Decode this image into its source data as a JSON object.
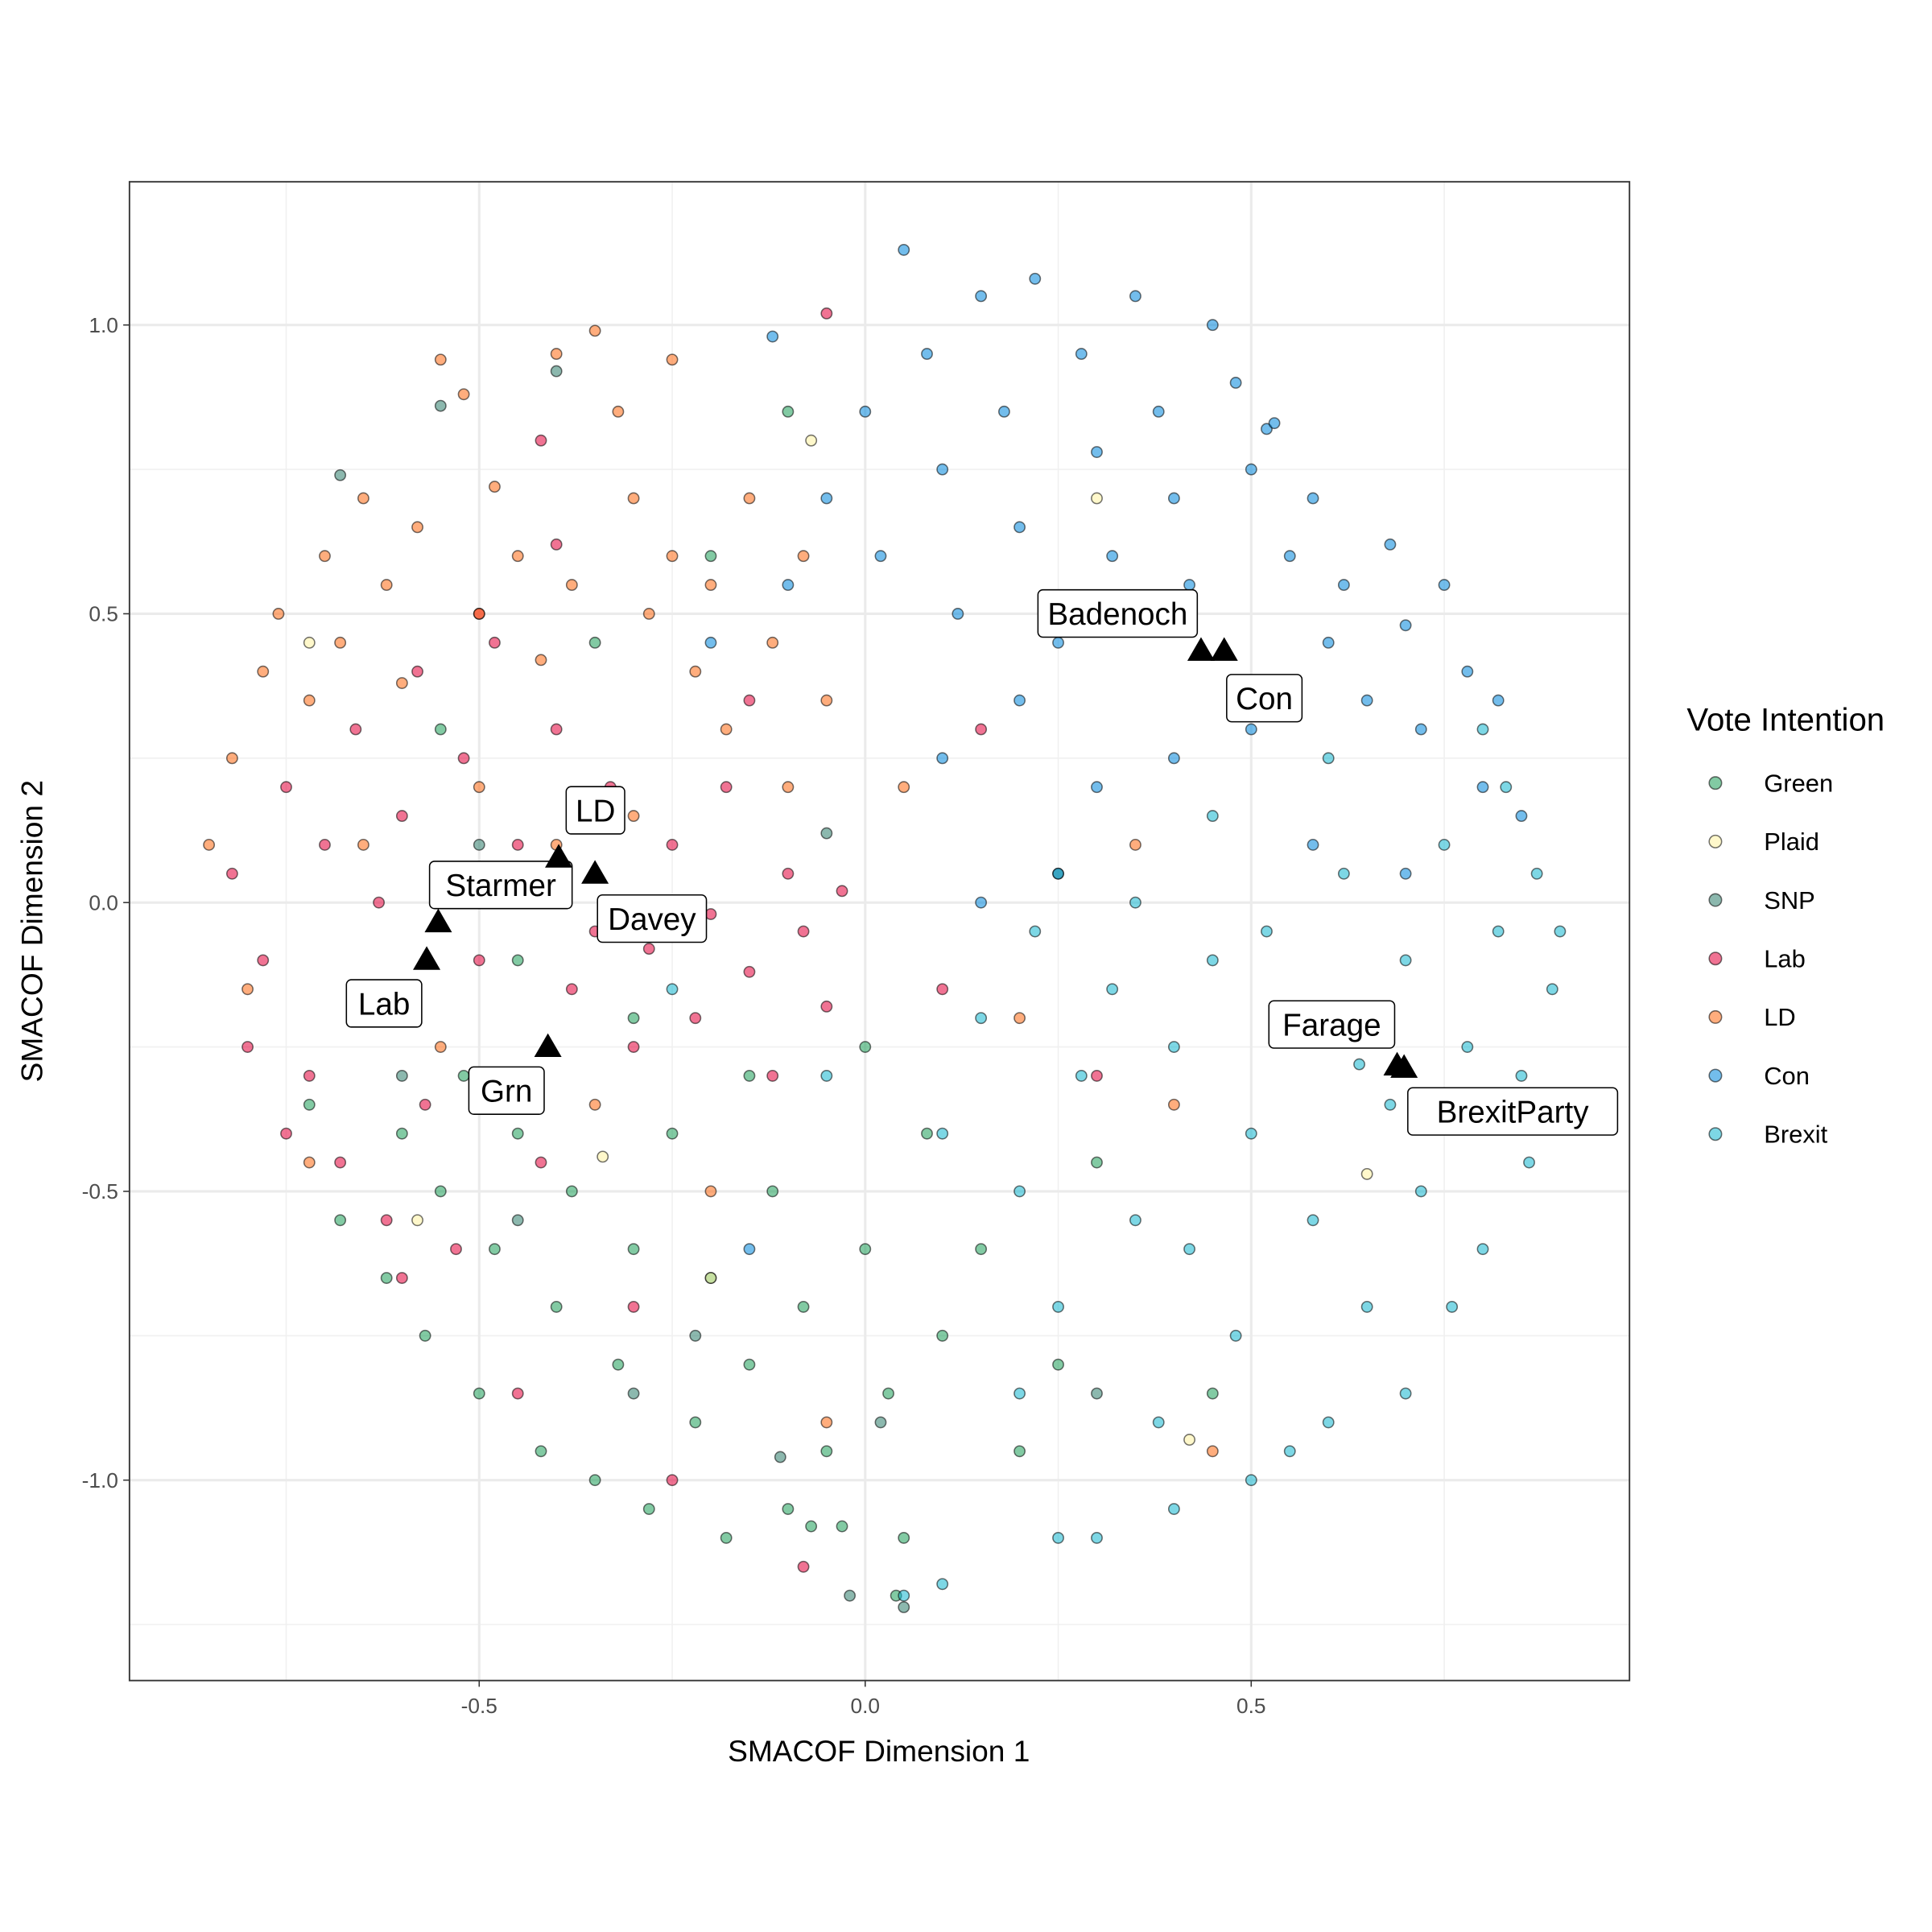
{
  "chart_data": {
    "type": "scatter",
    "title": "",
    "xlabel": "SMACOF Dimension 1",
    "ylabel": "SMACOF Dimension 2",
    "xlim": [
      -0.953,
      0.99
    ],
    "ylim": [
      -1.347,
      1.248
    ],
    "x_ticks": [
      -0.5,
      0.0,
      0.5
    ],
    "x_tick_labels": [
      "-0.5",
      "0.0",
      "0.5"
    ],
    "y_ticks": [
      -1.0,
      -0.5,
      0.0,
      0.5,
      1.0
    ],
    "y_tick_labels": [
      "-1.0",
      "-0.5",
      "0.0",
      "0.5",
      "1.0"
    ],
    "grid": true,
    "legend": {
      "title": "Vote Intention",
      "position": "right"
    },
    "series": [
      {
        "name": "Green",
        "color": "#1B9E57",
        "points": [
          [
            -0.72,
            -0.35
          ],
          [
            -0.68,
            -0.55
          ],
          [
            -0.65,
            -0.2
          ],
          [
            -0.62,
            -0.65
          ],
          [
            -0.6,
            -0.4
          ],
          [
            -0.57,
            -0.75
          ],
          [
            -0.55,
            -0.5
          ],
          [
            -0.52,
            -0.3
          ],
          [
            -0.5,
            -0.85
          ],
          [
            -0.48,
            -0.6
          ],
          [
            -0.45,
            -0.4
          ],
          [
            -0.42,
            -0.95
          ],
          [
            -0.4,
            -0.7
          ],
          [
            -0.38,
            -0.5
          ],
          [
            -0.35,
            -1.0
          ],
          [
            -0.32,
            -0.8
          ],
          [
            -0.3,
            -0.6
          ],
          [
            -0.28,
            -1.05
          ],
          [
            -0.25,
            -0.4
          ],
          [
            -0.22,
            -0.9
          ],
          [
            -0.2,
            -0.65
          ],
          [
            -0.18,
            -1.1
          ],
          [
            -0.15,
            -0.8
          ],
          [
            -0.12,
            -0.5
          ],
          [
            -0.1,
            -1.05
          ],
          [
            -0.08,
            -0.7
          ],
          [
            -0.05,
            -0.95
          ],
          [
            -0.03,
            -1.08
          ],
          [
            0.0,
            -0.6
          ],
          [
            0.03,
            -0.85
          ],
          [
            0.05,
            -1.1
          ],
          [
            0.08,
            -0.4
          ],
          [
            0.1,
            -0.75
          ],
          [
            0.15,
            -0.6
          ],
          [
            0.2,
            -0.95
          ],
          [
            0.25,
            -0.8
          ],
          [
            -0.45,
            -0.1
          ],
          [
            -0.3,
            -0.2
          ],
          [
            -0.15,
            -0.3
          ],
          [
            -0.55,
            0.3
          ],
          [
            -0.35,
            0.45
          ],
          [
            -0.2,
            0.6
          ],
          [
            -0.1,
            0.85
          ],
          [
            0.25,
            0.05
          ],
          [
            0.3,
            -0.45
          ],
          [
            0.0,
            -0.25
          ],
          [
            0.04,
            -1.2
          ],
          [
            -0.07,
            -1.08
          ],
          [
            0.45,
            -0.85
          ]
        ]
      },
      {
        "name": "Plaid",
        "color": "#FFF3A0",
        "points": [
          [
            -0.72,
            0.45
          ],
          [
            -0.34,
            -0.44
          ],
          [
            -0.07,
            0.8
          ],
          [
            -0.2,
            -0.65
          ],
          [
            0.42,
            -0.93
          ],
          [
            0.65,
            -0.47
          ],
          [
            -0.58,
            -0.55
          ],
          [
            0.3,
            0.7
          ]
        ]
      },
      {
        "name": "SNP",
        "color": "#2E7D6B",
        "points": [
          [
            -0.68,
            0.74
          ],
          [
            -0.55,
            0.86
          ],
          [
            -0.4,
            0.92
          ],
          [
            -0.6,
            -0.3
          ],
          [
            -0.45,
            -0.55
          ],
          [
            -0.3,
            -0.85
          ],
          [
            -0.11,
            -0.96
          ],
          [
            -0.02,
            -1.2
          ],
          [
            0.05,
            -1.22
          ],
          [
            -0.22,
            -0.75
          ],
          [
            0.02,
            -0.9
          ],
          [
            -0.5,
            0.1
          ],
          [
            -0.05,
            0.12
          ],
          [
            0.3,
            -0.85
          ]
        ]
      },
      {
        "name": "Lab",
        "color": "#E4003B",
        "points": [
          [
            -0.82,
            0.05
          ],
          [
            -0.78,
            -0.1
          ],
          [
            -0.75,
            0.2
          ],
          [
            -0.72,
            -0.3
          ],
          [
            -0.7,
            0.1
          ],
          [
            -0.68,
            -0.45
          ],
          [
            -0.66,
            0.3
          ],
          [
            -0.65,
            -0.2
          ],
          [
            -0.63,
            0.0
          ],
          [
            -0.62,
            -0.55
          ],
          [
            -0.6,
            0.15
          ],
          [
            -0.58,
            0.4
          ],
          [
            -0.57,
            -0.35
          ],
          [
            -0.55,
            0.05
          ],
          [
            -0.53,
            -0.6
          ],
          [
            -0.52,
            0.25
          ],
          [
            -0.5,
            -0.1
          ],
          [
            -0.48,
            0.45
          ],
          [
            -0.46,
            -0.3
          ],
          [
            -0.45,
            0.1
          ],
          [
            -0.42,
            -0.45
          ],
          [
            -0.4,
            0.3
          ],
          [
            -0.38,
            -0.15
          ],
          [
            -0.35,
            -0.05
          ],
          [
            -0.33,
            0.2
          ],
          [
            -0.3,
            -0.25
          ],
          [
            -0.28,
            -0.08
          ],
          [
            -0.25,
            0.1
          ],
          [
            -0.22,
            -0.2
          ],
          [
            -0.2,
            -0.02
          ],
          [
            -0.18,
            0.2
          ],
          [
            -0.15,
            -0.12
          ],
          [
            -0.12,
            -0.3
          ],
          [
            -0.1,
            0.05
          ],
          [
            -0.08,
            -0.05
          ],
          [
            -0.05,
            -0.18
          ],
          [
            -0.03,
            0.02
          ],
          [
            -0.3,
            -0.7
          ],
          [
            -0.45,
            -0.85
          ],
          [
            -0.25,
            -1.0
          ],
          [
            -0.08,
            -1.15
          ],
          [
            -0.6,
            -0.65
          ],
          [
            -0.75,
            -0.4
          ],
          [
            -0.8,
            -0.25
          ],
          [
            -0.5,
            0.5
          ],
          [
            -0.4,
            0.62
          ],
          [
            -0.15,
            0.35
          ],
          [
            0.15,
            0.3
          ],
          [
            0.1,
            -0.15
          ],
          [
            0.3,
            -0.3
          ],
          [
            -0.42,
            0.8
          ],
          [
            -0.05,
            1.02
          ]
        ]
      },
      {
        "name": "LD",
        "color": "#FF6A13",
        "points": [
          [
            -0.85,
            0.1
          ],
          [
            -0.82,
            0.25
          ],
          [
            -0.8,
            -0.15
          ],
          [
            -0.78,
            0.4
          ],
          [
            -0.76,
            0.5
          ],
          [
            -0.72,
            0.35
          ],
          [
            -0.7,
            0.6
          ],
          [
            -0.68,
            0.45
          ],
          [
            -0.65,
            0.7
          ],
          [
            -0.62,
            0.55
          ],
          [
            -0.6,
            0.38
          ],
          [
            -0.58,
            0.65
          ],
          [
            -0.55,
            0.94
          ],
          [
            -0.52,
            0.88
          ],
          [
            -0.5,
            0.5
          ],
          [
            -0.48,
            0.72
          ],
          [
            -0.45,
            0.6
          ],
          [
            -0.42,
            0.42
          ],
          [
            -0.4,
            0.95
          ],
          [
            -0.38,
            0.55
          ],
          [
            -0.35,
            0.99
          ],
          [
            -0.32,
            0.85
          ],
          [
            -0.3,
            0.7
          ],
          [
            -0.28,
            0.5
          ],
          [
            -0.25,
            0.6
          ],
          [
            -0.22,
            0.4
          ],
          [
            -0.2,
            0.55
          ],
          [
            -0.18,
            0.3
          ],
          [
            -0.15,
            0.7
          ],
          [
            -0.12,
            0.45
          ],
          [
            -0.1,
            0.2
          ],
          [
            -0.08,
            0.6
          ],
          [
            -0.05,
            0.35
          ],
          [
            -0.3,
            0.15
          ],
          [
            -0.5,
            0.2
          ],
          [
            -0.65,
            0.1
          ],
          [
            -0.72,
            -0.45
          ],
          [
            -0.55,
            -0.25
          ],
          [
            -0.35,
            -0.35
          ],
          [
            -0.2,
            -0.5
          ],
          [
            -0.05,
            -0.9
          ],
          [
            -0.4,
            0.1
          ],
          [
            0.05,
            0.2
          ],
          [
            0.2,
            -0.2
          ],
          [
            0.4,
            -0.35
          ],
          [
            0.45,
            -0.95
          ],
          [
            0.35,
            0.1
          ],
          [
            -0.25,
            0.94
          ]
        ]
      },
      {
        "name": "Con",
        "color": "#0087DC",
        "points": [
          [
            0.0,
            0.85
          ],
          [
            0.02,
            0.6
          ],
          [
            0.05,
            1.13
          ],
          [
            0.08,
            0.95
          ],
          [
            0.1,
            0.75
          ],
          [
            0.12,
            0.5
          ],
          [
            0.15,
            1.05
          ],
          [
            0.18,
            0.85
          ],
          [
            0.2,
            0.65
          ],
          [
            0.22,
            1.08
          ],
          [
            0.25,
            0.45
          ],
          [
            0.28,
            0.95
          ],
          [
            0.3,
            0.78
          ],
          [
            0.32,
            0.6
          ],
          [
            0.35,
            1.05
          ],
          [
            0.38,
            0.85
          ],
          [
            0.4,
            0.7
          ],
          [
            0.42,
            0.55
          ],
          [
            0.45,
            1.0
          ],
          [
            0.48,
            0.9
          ],
          [
            0.5,
            0.75
          ],
          [
            0.52,
            0.82
          ],
          [
            0.55,
            0.6
          ],
          [
            0.58,
            0.7
          ],
          [
            0.6,
            0.45
          ],
          [
            0.62,
            0.55
          ],
          [
            0.65,
            0.35
          ],
          [
            0.68,
            0.62
          ],
          [
            0.7,
            0.48
          ],
          [
            0.72,
            0.3
          ],
          [
            0.75,
            0.55
          ],
          [
            0.78,
            0.4
          ],
          [
            0.8,
            0.2
          ],
          [
            0.82,
            0.35
          ],
          [
            0.85,
            0.15
          ],
          [
            0.5,
            0.3
          ],
          [
            0.4,
            0.25
          ],
          [
            0.3,
            0.2
          ],
          [
            0.2,
            0.35
          ],
          [
            0.1,
            0.25
          ],
          [
            -0.05,
            0.7
          ],
          [
            -0.1,
            0.55
          ],
          [
            -0.12,
            0.98
          ],
          [
            -0.2,
            0.45
          ],
          [
            0.58,
            0.1
          ],
          [
            0.7,
            0.05
          ],
          [
            0.25,
            0.05
          ],
          [
            0.15,
            0.0
          ],
          [
            -0.15,
            -0.6
          ],
          [
            0.53,
            0.83
          ]
        ]
      },
      {
        "name": "Brexit",
        "color": "#12B6CF",
        "points": [
          [
            0.15,
            -0.2
          ],
          [
            0.2,
            -0.5
          ],
          [
            0.22,
            -0.05
          ],
          [
            0.25,
            -0.7
          ],
          [
            0.28,
            -0.3
          ],
          [
            0.3,
            -1.1
          ],
          [
            0.32,
            -0.15
          ],
          [
            0.35,
            -0.55
          ],
          [
            0.38,
            -0.9
          ],
          [
            0.4,
            -0.25
          ],
          [
            0.42,
            -0.6
          ],
          [
            0.45,
            -0.1
          ],
          [
            0.48,
            -0.75
          ],
          [
            0.5,
            -0.4
          ],
          [
            0.52,
            -0.05
          ],
          [
            0.55,
            -0.95
          ],
          [
            0.58,
            -0.55
          ],
          [
            0.6,
            -0.2
          ],
          [
            0.62,
            0.05
          ],
          [
            0.65,
            -0.7
          ],
          [
            0.68,
            -0.35
          ],
          [
            0.7,
            -0.1
          ],
          [
            0.72,
            -0.5
          ],
          [
            0.75,
            0.1
          ],
          [
            0.78,
            -0.25
          ],
          [
            0.8,
            -0.6
          ],
          [
            0.82,
            -0.05
          ],
          [
            0.85,
            -0.3
          ],
          [
            0.87,
            0.05
          ],
          [
            0.89,
            -0.15
          ],
          [
            0.86,
            -0.45
          ],
          [
            0.83,
            0.2
          ],
          [
            0.76,
            -0.7
          ],
          [
            0.7,
            -0.85
          ],
          [
            0.6,
            -0.9
          ],
          [
            0.5,
            -1.0
          ],
          [
            0.4,
            -1.05
          ],
          [
            0.25,
            -1.1
          ],
          [
            0.1,
            -1.18
          ],
          [
            0.05,
            -1.2
          ],
          [
            0.2,
            -0.85
          ],
          [
            0.35,
            0.0
          ],
          [
            0.45,
            0.15
          ],
          [
            0.6,
            0.25
          ],
          [
            0.8,
            0.3
          ],
          [
            0.1,
            -0.4
          ],
          [
            -0.05,
            -0.3
          ],
          [
            -0.25,
            -0.15
          ],
          [
            0.9,
            -0.05
          ],
          [
            0.64,
            -0.28
          ]
        ]
      }
    ],
    "annotations": [
      {
        "label": "Starmer",
        "x": -0.553,
        "y": -0.032
      },
      {
        "label": "Lab",
        "x": -0.568,
        "y": -0.097
      },
      {
        "label": "LD",
        "x": -0.397,
        "y": 0.08
      },
      {
        "label": "Davey",
        "x": -0.35,
        "y": 0.052
      },
      {
        "label": "Grn",
        "x": -0.411,
        "y": -0.248
      },
      {
        "label": "Badenoch",
        "x": 0.435,
        "y": 0.438
      },
      {
        "label": "Con",
        "x": 0.465,
        "y": 0.438
      },
      {
        "label": "Farage",
        "x": 0.689,
        "y": -0.28
      },
      {
        "label": "BrexitParty",
        "x": 0.698,
        "y": -0.284
      }
    ]
  }
}
